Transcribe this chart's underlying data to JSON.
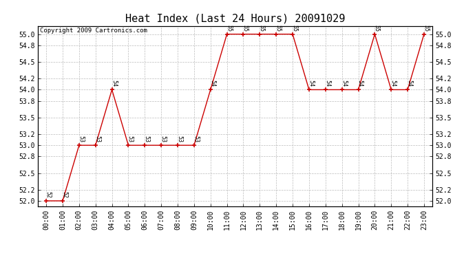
{
  "title": "Heat Index (Last 24 Hours) 20091029",
  "copyright": "Copyright 2009 Cartronics.com",
  "hours": [
    "00:00",
    "01:00",
    "02:00",
    "03:00",
    "04:00",
    "05:00",
    "06:00",
    "07:00",
    "08:00",
    "09:00",
    "10:00",
    "11:00",
    "12:00",
    "13:00",
    "14:00",
    "15:00",
    "16:00",
    "17:00",
    "18:00",
    "19:00",
    "20:00",
    "21:00",
    "22:00",
    "23:00"
  ],
  "values": [
    52.0,
    52.0,
    53.0,
    53.0,
    54.0,
    53.0,
    53.0,
    53.0,
    53.0,
    53.0,
    54.0,
    55.0,
    55.0,
    55.0,
    55.0,
    55.0,
    54.0,
    54.0,
    54.0,
    54.0,
    55.0,
    54.0,
    54.0,
    55.0
  ],
  "line_color": "#cc0000",
  "marker_color": "#cc0000",
  "bg_color": "#ffffff",
  "grid_color": "#bbbbbb",
  "ylim": [
    51.9,
    55.15
  ],
  "yticks": [
    52.0,
    52.2,
    52.5,
    52.8,
    53.0,
    53.2,
    53.5,
    53.8,
    54.0,
    54.2,
    54.5,
    54.8,
    55.0
  ],
  "title_fontsize": 11,
  "copyright_fontsize": 6.5,
  "tick_fontsize": 7,
  "label_fontsize": 6
}
